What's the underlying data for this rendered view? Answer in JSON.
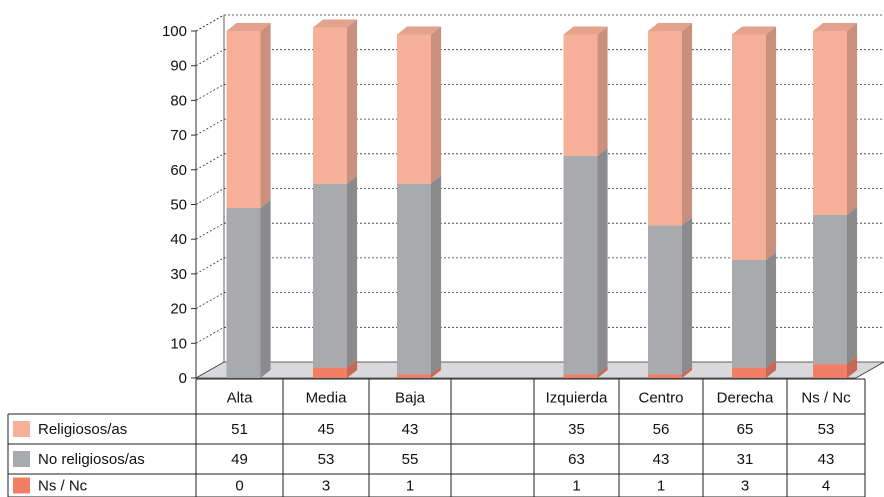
{
  "chart_data": {
    "type": "bar",
    "stacked": true,
    "three_d": true,
    "y_ticks": [
      "0",
      "10",
      "20",
      "30",
      "40",
      "50",
      "60",
      "70",
      "80",
      "90",
      "100"
    ],
    "ylim": [
      0,
      100
    ],
    "grid": "horizontal dotted",
    "groups": [
      {
        "categories": [
          "Alta",
          "Media",
          "Baja"
        ]
      },
      {
        "categories": [
          "Izquierda",
          "Centro",
          "Derecha",
          "Ns / Nc"
        ]
      }
    ],
    "categories": [
      "Alta",
      "Media",
      "Baja",
      "",
      "Izquierda",
      "Centro",
      "Derecha",
      "Ns / Nc"
    ],
    "series": [
      {
        "name": "Religiosos/as",
        "color": "#f6b09a",
        "values": [
          51,
          45,
          43,
          null,
          35,
          56,
          65,
          53
        ]
      },
      {
        "name": "No religiosos/as",
        "color": "#a9aaad",
        "values": [
          49,
          53,
          55,
          null,
          63,
          43,
          31,
          43
        ]
      },
      {
        "name": "Ns / Nc",
        "color": "#f07f66",
        "values": [
          0,
          3,
          1,
          null,
          1,
          1,
          3,
          4
        ]
      }
    ],
    "table": {
      "header": [
        "Alta",
        "Media",
        "Baja",
        "",
        "Izquierda",
        "Centro",
        "Derecha",
        "Ns / Nc"
      ],
      "rows": [
        {
          "label": "Religiosos/as",
          "cells": [
            "51",
            "45",
            "43",
            "",
            "35",
            "56",
            "65",
            "53"
          ]
        },
        {
          "label": "No religiosos/as",
          "cells": [
            "49",
            "53",
            "55",
            "",
            "63",
            "43",
            "31",
            "43"
          ]
        },
        {
          "label": "Ns / Nc",
          "cells": [
            "0",
            "3",
            "1",
            "",
            "1",
            "1",
            "3",
            "4"
          ]
        }
      ]
    }
  }
}
